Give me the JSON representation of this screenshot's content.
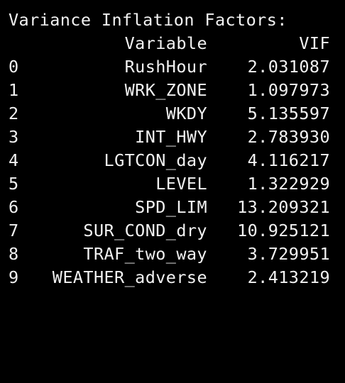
{
  "title": "Variance Inflation Factors:",
  "columns": {
    "variable": "Variable",
    "vif": "VIF"
  },
  "rows": [
    {
      "index": "0",
      "variable": "RushHour",
      "vif": "2.031087"
    },
    {
      "index": "1",
      "variable": "WRK_ZONE",
      "vif": "1.097973"
    },
    {
      "index": "2",
      "variable": "WKDY",
      "vif": "5.135597"
    },
    {
      "index": "3",
      "variable": "INT_HWY",
      "vif": "2.783930"
    },
    {
      "index": "4",
      "variable": "LGTCON_day",
      "vif": "4.116217"
    },
    {
      "index": "5",
      "variable": "LEVEL",
      "vif": "1.322929"
    },
    {
      "index": "6",
      "variable": "SPD_LIM",
      "vif": "13.209321"
    },
    {
      "index": "7",
      "variable": "SUR_COND_dry",
      "vif": "10.925121"
    },
    {
      "index": "8",
      "variable": "TRAF_two_way",
      "vif": "3.729951"
    },
    {
      "index": "9",
      "variable": "WEATHER_adverse",
      "vif": "2.413219"
    }
  ],
  "colors": {
    "background": "#000000",
    "text": "#f2f2f2"
  }
}
